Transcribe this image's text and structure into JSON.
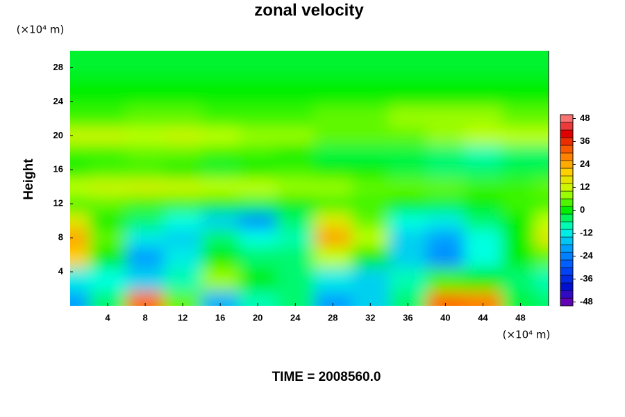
{
  "chart_data": {
    "type": "contour",
    "title": "zonal velocity",
    "y_label": "Height",
    "x_unit": "(×10⁴ m)",
    "y_unit": "(×10⁴ m)",
    "footer": "TIME = 2008560.0",
    "xlim": [
      0,
      51
    ],
    "ylim": [
      0,
      30
    ],
    "xticks": [
      4,
      8,
      12,
      16,
      20,
      24,
      28,
      32,
      36,
      40,
      44,
      48
    ],
    "yticks": [
      4,
      8,
      12,
      16,
      20,
      24,
      28
    ],
    "clim": [
      -50,
      50
    ],
    "cticks": [
      -48,
      -36,
      -24,
      -12,
      0,
      12,
      24,
      36,
      48
    ],
    "colormap": [
      "#7a00b0",
      "#0010d0",
      "#0050ff",
      "#00a0ff",
      "#00ffe0",
      "#00f000",
      "#c0ff00",
      "#ffd000",
      "#ff7000",
      "#e00000",
      "#ff9090"
    ],
    "x": [
      0,
      4,
      8,
      12,
      16,
      20,
      24,
      28,
      32,
      36,
      40,
      44,
      48,
      51
    ],
    "y": [
      0.5,
      3,
      6,
      8,
      10,
      12,
      14,
      16,
      18,
      20,
      22,
      25,
      29
    ],
    "z": [
      [
        -20,
        -5,
        30,
        5,
        -18,
        -8,
        -5,
        -20,
        -15,
        -5,
        30,
        28,
        -3,
        -5
      ],
      [
        -12,
        -10,
        -15,
        -8,
        8,
        0,
        -5,
        -12,
        -15,
        -8,
        3,
        0,
        -5,
        -8
      ],
      [
        20,
        0,
        -20,
        -12,
        0,
        -5,
        -5,
        10,
        0,
        -15,
        -22,
        -10,
        0,
        5
      ],
      [
        25,
        5,
        -12,
        -15,
        -5,
        -10,
        -8,
        25,
        10,
        -15,
        -20,
        -10,
        0,
        15
      ],
      [
        15,
        0,
        -5,
        -10,
        -15,
        -22,
        -5,
        15,
        5,
        -10,
        -12,
        -5,
        0,
        10
      ],
      [
        3,
        5,
        3,
        3,
        0,
        -3,
        0,
        3,
        3,
        0,
        -3,
        0,
        3,
        3
      ],
      [
        10,
        12,
        13,
        12,
        10,
        10,
        8,
        8,
        5,
        5,
        5,
        3,
        3,
        5
      ],
      [
        0,
        3,
        3,
        0,
        -2,
        0,
        3,
        0,
        0,
        -3,
        -5,
        -5,
        -3,
        -3
      ],
      [
        3,
        3,
        5,
        5,
        3,
        3,
        0,
        -3,
        -3,
        -3,
        -5,
        -8,
        -5,
        -5
      ],
      [
        12,
        12,
        10,
        12,
        10,
        8,
        8,
        5,
        5,
        5,
        8,
        10,
        10,
        10
      ],
      [
        3,
        3,
        5,
        5,
        3,
        3,
        3,
        5,
        5,
        8,
        8,
        8,
        5,
        5
      ],
      [
        0,
        0,
        0,
        0,
        0,
        0,
        0,
        0,
        0,
        0,
        0,
        0,
        0,
        0
      ],
      [
        -2,
        -2,
        -2,
        -2,
        -2,
        -2,
        -2,
        -2,
        -2,
        -2,
        -2,
        -2,
        -2,
        -2
      ]
    ]
  }
}
